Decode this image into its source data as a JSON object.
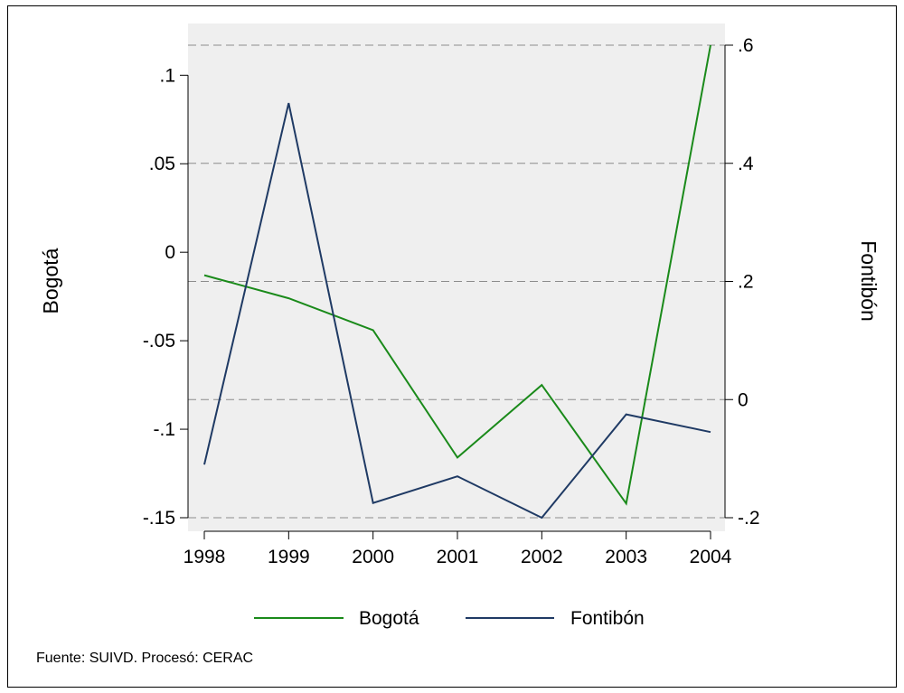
{
  "chart_data": {
    "type": "line",
    "x": [
      1998,
      1999,
      2000,
      2001,
      2002,
      2003,
      2004
    ],
    "x_tick_labels": [
      "1998",
      "1999",
      "2000",
      "2001",
      "2002",
      "2003",
      "2004"
    ],
    "series": [
      {
        "name": "Bogotá",
        "axis": "left",
        "color": "#1a8a1a",
        "values": [
          -0.013,
          -0.026,
          -0.044,
          -0.116,
          -0.075,
          -0.142,
          0.117
        ]
      },
      {
        "name": "Fontibón",
        "axis": "right",
        "color": "#1f3a64",
        "values": [
          -0.11,
          0.502,
          -0.175,
          -0.13,
          -0.2,
          -0.025,
          -0.055
        ]
      }
    ],
    "y_left": {
      "label": "Bogotá",
      "range": [
        -0.15,
        0.117
      ],
      "ticks": [
        -0.15,
        -0.1,
        -0.05,
        0,
        0.05,
        0.1
      ],
      "tick_labels": [
        "-.15",
        "-.1",
        "-.05",
        "0",
        ".05",
        ".1"
      ]
    },
    "y_right": {
      "label": "Fontibón",
      "range": [
        -0.2,
        0.6
      ],
      "ticks": [
        -0.2,
        0,
        0.2,
        0.4,
        0.6
      ],
      "tick_labels": [
        "-.2",
        "0",
        ".2",
        ".4",
        ".6"
      ]
    },
    "grid": "dashed horizontal lines at right-axis ticks",
    "legend_position": "bottom",
    "legend": [
      "Bogotá",
      "Fontibón"
    ],
    "colors": {
      "plot_background": "#efefef",
      "grid": "#8c8c8c"
    }
  },
  "note": "Fuente: SUIVD. Procesó: CERAC"
}
